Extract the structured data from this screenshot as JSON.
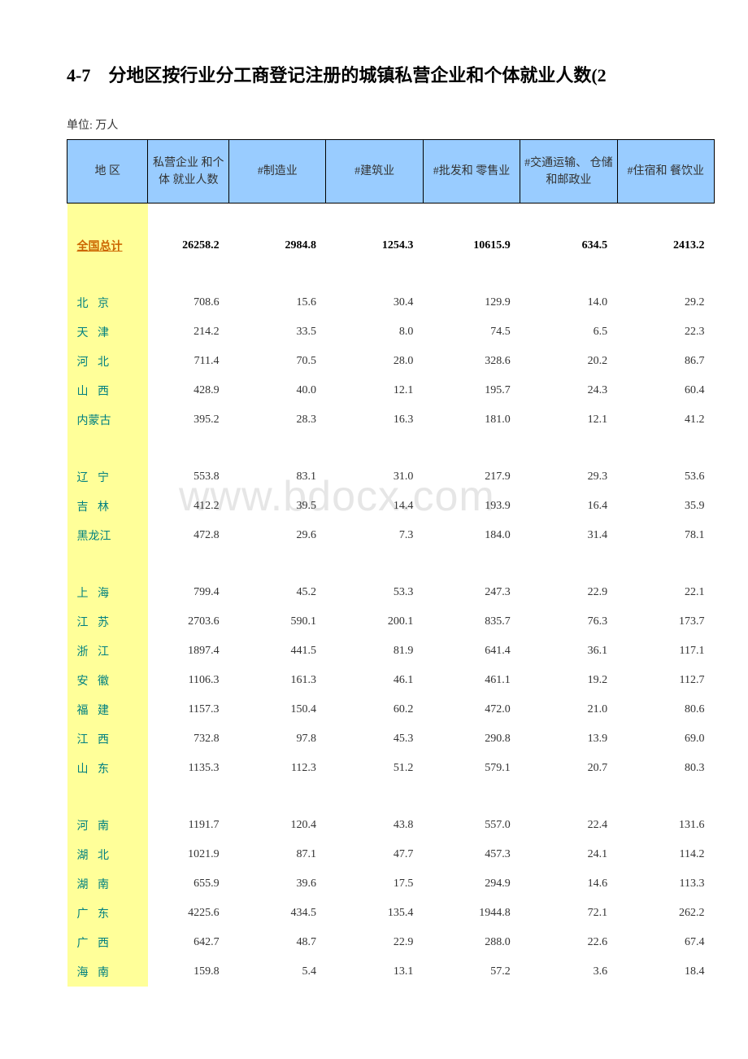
{
  "title": "4-7　分地区按行业分工商登记注册的城镇私营企业和个体就业人数(2",
  "unit_label": "单位: 万人",
  "watermark_text": "www.bdocx.com",
  "colors": {
    "header_bg": "#99ccff",
    "region_col_bg": "#ffff99",
    "region_text": "#008080",
    "total_region_text": "#cc6600",
    "border": "#000000",
    "page_bg": "#ffffff"
  },
  "table": {
    "columns": [
      "地 区",
      "私营企业\n和个体\n就业人数",
      "#制造业",
      "#建筑业",
      "#批发和\n零售业",
      "#交通运输、\n仓储和邮政业",
      "#住宿和\n餐饮业"
    ],
    "total_row": {
      "region": "全国总计",
      "values": [
        "26258.2",
        "2984.8",
        "1254.3",
        "10615.9",
        "634.5",
        "2413.2"
      ]
    },
    "groups": [
      [
        {
          "region": "北 京",
          "values": [
            "708.6",
            "15.6",
            "30.4",
            "129.9",
            "14.0",
            "29.2"
          ]
        },
        {
          "region": "天 津",
          "values": [
            "214.2",
            "33.5",
            "8.0",
            "74.5",
            "6.5",
            "22.3"
          ]
        },
        {
          "region": "河 北",
          "values": [
            "711.4",
            "70.5",
            "28.0",
            "328.6",
            "20.2",
            "86.7"
          ]
        },
        {
          "region": "山 西",
          "values": [
            "428.9",
            "40.0",
            "12.1",
            "195.7",
            "24.3",
            "60.4"
          ]
        },
        {
          "region": "内蒙古",
          "values": [
            "395.2",
            "28.3",
            "16.3",
            "181.0",
            "12.1",
            "41.2"
          ]
        }
      ],
      [
        {
          "region": "辽 宁",
          "values": [
            "553.8",
            "83.1",
            "31.0",
            "217.9",
            "29.3",
            "53.6"
          ]
        },
        {
          "region": "吉 林",
          "values": [
            "412.2",
            "39.5",
            "14.4",
            "193.9",
            "16.4",
            "35.9"
          ]
        },
        {
          "region": "黑龙江",
          "values": [
            "472.8",
            "29.6",
            "7.3",
            "184.0",
            "31.4",
            "78.1"
          ]
        }
      ],
      [
        {
          "region": "上 海",
          "values": [
            "799.4",
            "45.2",
            "53.3",
            "247.3",
            "22.9",
            "22.1"
          ]
        },
        {
          "region": "江 苏",
          "values": [
            "2703.6",
            "590.1",
            "200.1",
            "835.7",
            "76.3",
            "173.7"
          ]
        },
        {
          "region": "浙 江",
          "values": [
            "1897.4",
            "441.5",
            "81.9",
            "641.4",
            "36.1",
            "117.1"
          ]
        },
        {
          "region": "安 徽",
          "values": [
            "1106.3",
            "161.3",
            "46.1",
            "461.1",
            "19.2",
            "112.7"
          ]
        },
        {
          "region": "福 建",
          "values": [
            "1157.3",
            "150.4",
            "60.2",
            "472.0",
            "21.0",
            "80.6"
          ]
        },
        {
          "region": "江 西",
          "values": [
            "732.8",
            "97.8",
            "45.3",
            "290.8",
            "13.9",
            "69.0"
          ]
        },
        {
          "region": "山 东",
          "values": [
            "1135.3",
            "112.3",
            "51.2",
            "579.1",
            "20.7",
            "80.3"
          ]
        }
      ],
      [
        {
          "region": "河 南",
          "values": [
            "1191.7",
            "120.4",
            "43.8",
            "557.0",
            "22.4",
            "131.6"
          ]
        },
        {
          "region": "湖 北",
          "values": [
            "1021.9",
            "87.1",
            "47.7",
            "457.3",
            "24.1",
            "114.2"
          ]
        },
        {
          "region": "湖 南",
          "values": [
            "655.9",
            "39.6",
            "17.5",
            "294.9",
            "14.6",
            "113.3"
          ]
        },
        {
          "region": "广 东",
          "values": [
            "4225.6",
            "434.5",
            "135.4",
            "1944.8",
            "72.1",
            "262.2"
          ]
        },
        {
          "region": "广 西",
          "values": [
            "642.7",
            "48.7",
            "22.9",
            "288.0",
            "22.6",
            "67.4"
          ]
        },
        {
          "region": "海 南",
          "values": [
            "159.8",
            "5.4",
            "13.1",
            "57.2",
            "3.6",
            "18.4"
          ]
        }
      ]
    ]
  }
}
